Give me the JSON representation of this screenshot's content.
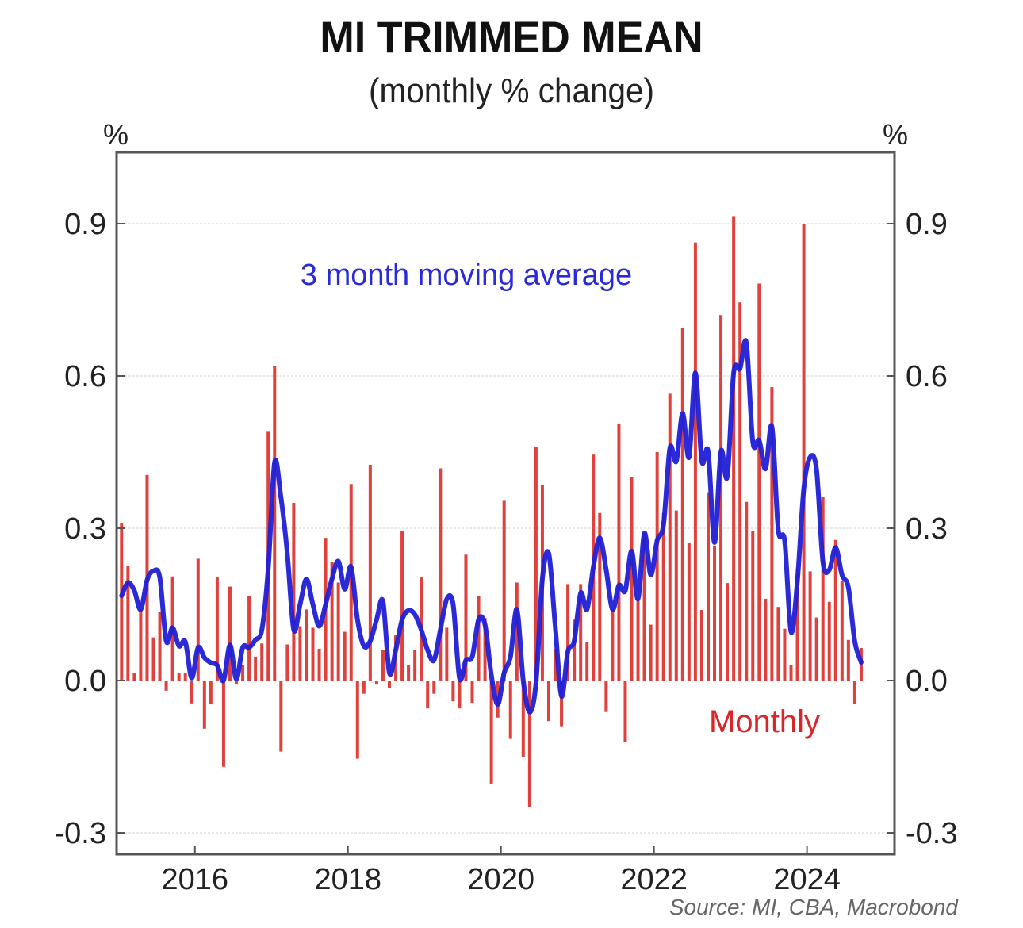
{
  "chart_data": {
    "type": "bar",
    "title": "MI TRIMMED MEAN",
    "subtitle": "(monthly % change)",
    "ylabel_left": "%",
    "ylabel_right": "%",
    "xlabel": "",
    "ylim": [
      -0.35,
      1.04
    ],
    "yticks": [
      -0.3,
      0.0,
      0.3,
      0.6,
      0.9
    ],
    "ytick_labels": [
      "-0.3",
      "0.0",
      "0.3",
      "0.6",
      "0.9"
    ],
    "xticks": [
      "2016",
      "2018",
      "2020",
      "2022",
      "2024"
    ],
    "x_start": "2015-01",
    "x_end": "2024-09",
    "frequency": "monthly",
    "grid": true,
    "source": "Source: MI, CBA, Macrobond",
    "colors": {
      "bars": "#e0413c",
      "line": "#1f1fd6"
    },
    "series": [
      {
        "name": "Monthly",
        "type": "bar",
        "label": "Monthly",
        "values": [
          0.31,
          0.225,
          0.015,
          0.14,
          0.405,
          0.085,
          0.135,
          -0.02,
          0.205,
          0.015,
          0.015,
          -0.045,
          0.24,
          -0.095,
          -0.047,
          0.204,
          -0.17,
          0.185,
          -0.008,
          0.031,
          0.167,
          0.047,
          0.073,
          0.49,
          0.62,
          -0.14,
          0.071,
          0.35,
          0.107,
          0.14,
          0.104,
          0.0625,
          0.281,
          0.234,
          0.193,
          0.096,
          0.387,
          -0.154,
          -0.026,
          0.425,
          -0.008,
          0.06,
          -0.015,
          0.089,
          0.295,
          0.031,
          0.06,
          0.203,
          -0.055,
          -0.026,
          0.418,
          0.104,
          -0.041,
          -0.055,
          0.248,
          -0.044,
          0.167,
          0.123,
          -0.203,
          -0.073,
          0.354,
          -0.115,
          0.193,
          -0.151,
          -0.25,
          0.46,
          0.385,
          -0.08,
          0.062,
          -0.09,
          0.19,
          0.12,
          0.19,
          0.076,
          0.445,
          0.33,
          -0.062,
          0.14,
          0.505,
          -0.122,
          0.4,
          0.16,
          0.29,
          0.11,
          0.45,
          0.33,
          0.565,
          0.335,
          0.695,
          0.272,
          0.863,
          0.139,
          0.371,
          0.266,
          0.72,
          0.192,
          0.915,
          0.745,
          0.352,
          0.294,
          0.782,
          0.161,
          0.578,
          0.145,
          0.102,
          0.03,
          0.221,
          0.9,
          0.215,
          0.124,
          0.362,
          0.155,
          0.277,
          0.196,
          0.08,
          -0.046,
          0.064
        ]
      },
      {
        "name": "3 month moving average",
        "type": "line",
        "label": "3 month moving average",
        "values": [
          0.167,
          0.193,
          0.177,
          0.14,
          0.198,
          0.216,
          0.203,
          0.078,
          0.104,
          0.068,
          0.076,
          0.005,
          0.065,
          0.045,
          0.035,
          0.03,
          0.0,
          0.07,
          0.003,
          0.065,
          0.065,
          0.08,
          0.1,
          0.22,
          0.43,
          0.36,
          0.25,
          0.1,
          0.15,
          0.2,
          0.15,
          0.107,
          0.15,
          0.2,
          0.235,
          0.18,
          0.224,
          0.12,
          0.068,
          0.078,
          0.12,
          0.156,
          0.015,
          0.06,
          0.12,
          0.138,
          0.13,
          0.1,
          0.06,
          0.04,
          0.1,
          0.16,
          0.15,
          0.005,
          0.04,
          0.047,
          0.12,
          0.11,
          0.01,
          -0.047,
          0.015,
          0.047,
          0.14,
          0.0,
          -0.062,
          -0.005,
          0.2,
          0.25,
          0.11,
          -0.031,
          0.057,
          0.078,
          0.172,
          0.14,
          0.224,
          0.281,
          0.219,
          0.14,
          0.1875,
          0.177,
          0.255,
          0.161,
          0.29,
          0.208,
          0.276,
          0.307,
          0.458,
          0.432,
          0.526,
          0.44,
          0.606,
          0.433,
          0.451,
          0.272,
          0.451,
          0.402,
          0.606,
          0.615,
          0.665,
          0.47,
          0.473,
          0.417,
          0.5,
          0.297,
          0.275,
          0.096,
          0.196,
          0.378,
          0.44,
          0.415,
          0.234,
          0.218,
          0.262,
          0.208,
          0.183,
          0.077,
          0.036
        ]
      }
    ]
  }
}
